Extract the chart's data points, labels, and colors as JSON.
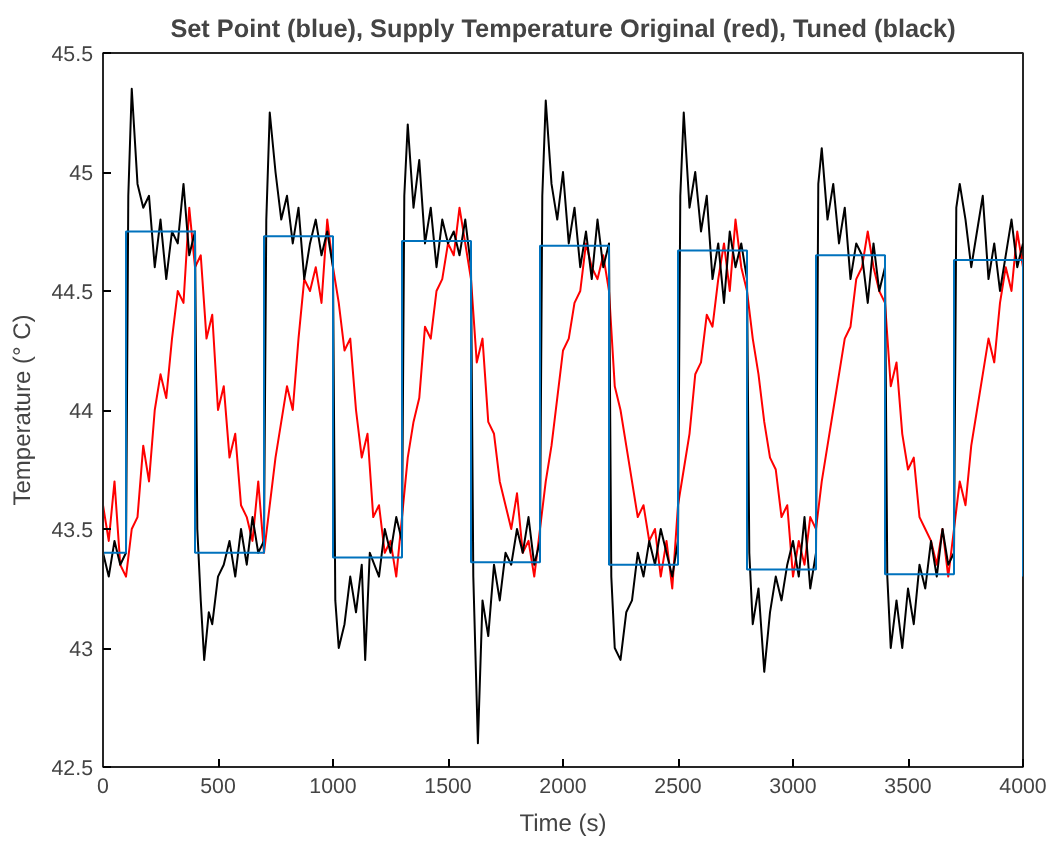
{
  "chart_data": {
    "type": "line",
    "title": "Set Point (blue), Supply Temperature Original (red), Tuned (black)",
    "xlabel": "Time (s)",
    "ylabel": "Temperature (° C)",
    "xlim": [
      0,
      4000
    ],
    "ylim": [
      42.5,
      45.5
    ],
    "xticks": [
      0,
      500,
      1000,
      1500,
      2000,
      2500,
      3000,
      3500,
      4000
    ],
    "yticks": [
      42.5,
      43,
      43.5,
      44,
      44.5,
      45,
      45.5
    ],
    "grid": false,
    "series": [
      {
        "color": "#ff0000",
        "x": [
          0,
          25,
          50,
          75,
          100,
          125,
          150,
          175,
          200,
          225,
          250,
          275,
          300,
          325,
          350,
          375,
          400,
          425,
          450,
          475,
          500,
          525,
          550,
          575,
          600,
          625,
          650,
          675,
          700,
          725,
          750,
          775,
          800,
          825,
          850,
          875,
          900,
          925,
          950,
          975,
          1000,
          1025,
          1050,
          1075,
          1100,
          1125,
          1150,
          1175,
          1200,
          1225,
          1250,
          1275,
          1300,
          1325,
          1350,
          1375,
          1400,
          1425,
          1450,
          1475,
          1500,
          1525,
          1550,
          1575,
          1600,
          1625,
          1650,
          1675,
          1700,
          1725,
          1750,
          1775,
          1800,
          1825,
          1850,
          1875,
          1900,
          1925,
          1950,
          1975,
          2000,
          2025,
          2050,
          2075,
          2100,
          2125,
          2150,
          2175,
          2200,
          2225,
          2250,
          2275,
          2300,
          2325,
          2350,
          2375,
          2400,
          2425,
          2450,
          2475,
          2500,
          2525,
          2550,
          2575,
          2600,
          2625,
          2650,
          2675,
          2700,
          2725,
          2750,
          2775,
          2800,
          2825,
          2850,
          2875,
          2900,
          2925,
          2950,
          2975,
          3000,
          3025,
          3050,
          3075,
          3100,
          3125,
          3150,
          3175,
          3200,
          3225,
          3250,
          3275,
          3300,
          3325,
          3350,
          3375,
          3400,
          3425,
          3450,
          3475,
          3500,
          3525,
          3550,
          3575,
          3600,
          3625,
          3650,
          3675,
          3700,
          3725,
          3750,
          3775,
          3800,
          3825,
          3850,
          3875,
          3900,
          3925,
          3950,
          3975,
          4000
        ],
        "values": [
          43.6,
          43.45,
          43.7,
          43.35,
          43.3,
          43.5,
          43.55,
          43.85,
          43.7,
          44.0,
          44.15,
          44.05,
          44.3,
          44.5,
          44.45,
          44.85,
          44.6,
          44.65,
          44.3,
          44.4,
          44.0,
          44.1,
          43.8,
          43.9,
          43.6,
          43.55,
          43.45,
          43.7,
          43.4,
          43.6,
          43.8,
          43.95,
          44.1,
          44.0,
          44.3,
          44.55,
          44.5,
          44.6,
          44.45,
          44.8,
          44.6,
          44.45,
          44.25,
          44.3,
          44.0,
          43.8,
          43.9,
          43.55,
          43.6,
          43.4,
          43.45,
          43.3,
          43.55,
          43.8,
          43.95,
          44.05,
          44.35,
          44.3,
          44.5,
          44.55,
          44.7,
          44.65,
          44.85,
          44.7,
          44.55,
          44.2,
          44.3,
          43.95,
          43.9,
          43.7,
          43.6,
          43.5,
          43.65,
          43.4,
          43.45,
          43.3,
          43.5,
          43.7,
          43.85,
          44.05,
          44.25,
          44.3,
          44.45,
          44.5,
          44.7,
          44.6,
          44.55,
          44.65,
          44.5,
          44.1,
          44.0,
          43.85,
          43.7,
          43.55,
          43.6,
          43.45,
          43.5,
          43.3,
          43.45,
          43.25,
          43.6,
          43.75,
          43.9,
          44.15,
          44.2,
          44.4,
          44.35,
          44.55,
          44.7,
          44.5,
          44.8,
          44.6,
          44.5,
          44.3,
          44.15,
          43.95,
          43.8,
          43.75,
          43.55,
          43.6,
          43.3,
          43.45,
          43.35,
          43.55,
          43.5,
          43.7,
          43.85,
          44.0,
          44.15,
          44.3,
          44.35,
          44.55,
          44.6,
          44.75,
          44.6,
          44.5,
          44.45,
          44.1,
          44.2,
          43.9,
          43.75,
          43.8,
          43.55,
          43.5,
          43.45,
          43.35,
          43.5,
          43.3,
          43.5,
          43.7,
          43.6,
          43.85,
          44.0,
          44.15,
          44.3,
          44.2,
          44.45,
          44.6,
          44.5,
          44.75,
          44.6
        ]
      },
      {
        "color": "#000000",
        "x": [
          0,
          25,
          50,
          75,
          100,
          110,
          125,
          150,
          175,
          200,
          225,
          250,
          275,
          300,
          325,
          350,
          375,
          400,
          410,
          425,
          440,
          460,
          475,
          500,
          525,
          550,
          575,
          600,
          625,
          650,
          675,
          700,
          710,
          725,
          750,
          775,
          800,
          825,
          850,
          875,
          900,
          925,
          950,
          975,
          1000,
          1010,
          1025,
          1050,
          1075,
          1100,
          1125,
          1140,
          1160,
          1200,
          1225,
          1250,
          1275,
          1300,
          1310,
          1325,
          1350,
          1375,
          1400,
          1425,
          1450,
          1475,
          1500,
          1525,
          1550,
          1575,
          1600,
          1610,
          1630,
          1650,
          1675,
          1700,
          1725,
          1750,
          1775,
          1800,
          1825,
          1850,
          1875,
          1900,
          1910,
          1925,
          1950,
          1975,
          2000,
          2025,
          2050,
          2075,
          2100,
          2125,
          2150,
          2175,
          2200,
          2210,
          2225,
          2250,
          2275,
          2300,
          2325,
          2350,
          2375,
          2400,
          2425,
          2450,
          2475,
          2500,
          2510,
          2525,
          2550,
          2575,
          2600,
          2625,
          2650,
          2675,
          2700,
          2725,
          2750,
          2775,
          2800,
          2810,
          2825,
          2850,
          2875,
          2900,
          2925,
          2950,
          2975,
          3000,
          3025,
          3050,
          3075,
          3100,
          3110,
          3125,
          3150,
          3175,
          3200,
          3225,
          3250,
          3275,
          3300,
          3325,
          3350,
          3375,
          3400,
          3410,
          3425,
          3450,
          3475,
          3500,
          3525,
          3550,
          3575,
          3600,
          3625,
          3650,
          3675,
          3700,
          3710,
          3725,
          3750,
          3775,
          3800,
          3825,
          3850,
          3875,
          3900,
          3925,
          3950,
          3975,
          4000
        ],
        "values": [
          43.4,
          43.3,
          43.45,
          43.35,
          43.4,
          44.9,
          45.35,
          44.95,
          44.85,
          44.9,
          44.6,
          44.8,
          44.55,
          44.75,
          44.7,
          44.95,
          44.65,
          44.75,
          43.5,
          43.2,
          42.95,
          43.15,
          43.1,
          43.3,
          43.35,
          43.45,
          43.3,
          43.5,
          43.35,
          43.55,
          43.4,
          43.45,
          44.8,
          45.25,
          45.0,
          44.8,
          44.9,
          44.7,
          44.85,
          44.55,
          44.7,
          44.8,
          44.65,
          44.75,
          44.6,
          43.2,
          43.0,
          43.1,
          43.3,
          43.15,
          43.35,
          42.95,
          43.4,
          43.3,
          43.5,
          43.4,
          43.55,
          43.45,
          44.9,
          45.2,
          44.85,
          45.05,
          44.7,
          44.85,
          44.6,
          44.8,
          44.7,
          44.75,
          44.65,
          44.8,
          44.6,
          43.3,
          42.6,
          43.2,
          43.05,
          43.35,
          43.2,
          43.4,
          43.35,
          43.5,
          43.4,
          43.55,
          43.35,
          43.45,
          44.9,
          45.3,
          44.95,
          44.8,
          45.0,
          44.7,
          44.85,
          44.6,
          44.75,
          44.55,
          44.8,
          44.6,
          44.7,
          43.3,
          43.0,
          42.95,
          43.15,
          43.2,
          43.4,
          43.3,
          43.45,
          43.35,
          43.5,
          43.4,
          43.3,
          43.45,
          44.9,
          45.25,
          44.85,
          45.0,
          44.75,
          44.9,
          44.55,
          44.7,
          44.45,
          44.75,
          44.6,
          44.7,
          44.55,
          43.4,
          43.1,
          43.25,
          42.9,
          43.15,
          43.3,
          43.2,
          43.35,
          43.45,
          43.3,
          43.55,
          43.25,
          43.4,
          44.95,
          45.1,
          44.8,
          44.95,
          44.7,
          44.85,
          44.55,
          44.7,
          44.65,
          44.45,
          44.7,
          44.5,
          44.6,
          43.3,
          43.0,
          43.2,
          43.0,
          43.25,
          43.1,
          43.35,
          43.25,
          43.45,
          43.3,
          43.5,
          43.35,
          43.4,
          44.85,
          44.95,
          44.8,
          44.6,
          44.75,
          44.9,
          44.55,
          44.7,
          44.5,
          44.65,
          44.8,
          44.6,
          44.7
        ]
      },
      {
        "type": "step",
        "color": "#0072bd",
        "x": [
          0,
          100,
          400,
          700,
          1000,
          1300,
          1600,
          1900,
          2200,
          2500,
          2800,
          3100,
          3400,
          3700,
          4000
        ],
        "values": [
          43.4,
          44.75,
          43.4,
          44.73,
          43.38,
          44.71,
          43.36,
          44.69,
          43.35,
          44.67,
          43.33,
          44.65,
          43.31,
          44.63,
          43.3
        ]
      }
    ]
  }
}
